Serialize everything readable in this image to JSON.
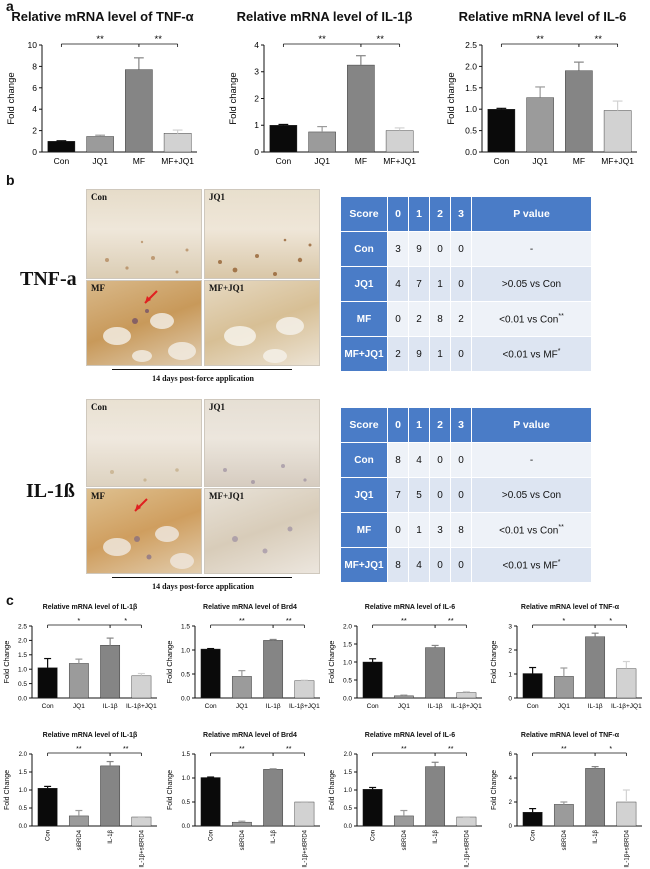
{
  "panel_letters": {
    "a": "a",
    "b": "b",
    "c": "c"
  },
  "colors": {
    "black": "#0a0a0a",
    "dark_gray": "#858585",
    "gray": "#9b9b9b",
    "light_gray": "#d2d2d2",
    "table_header": "#4a7cc7"
  },
  "chart_data": [
    {
      "type": "bar",
      "title": "Relative mRNA level of TNF-α",
      "ylabel": "Fold change",
      "categories": [
        "Con",
        "JQ1",
        "MF",
        "MF+JQ1"
      ],
      "values": [
        1.0,
        1.45,
        7.7,
        1.75
      ],
      "errors": [
        0.05,
        0.12,
        1.1,
        0.3
      ],
      "ylim": [
        0,
        10
      ],
      "yticks": [
        "0",
        "2",
        "4",
        "6",
        "8",
        "10"
      ],
      "significance": [
        {
          "from": 0,
          "to": 2,
          "label": "**"
        },
        {
          "from": 2,
          "to": 3,
          "label": "**"
        }
      ]
    },
    {
      "type": "bar",
      "title": "Relative mRNA level of IL-1β",
      "ylabel": "Fold change",
      "categories": [
        "Con",
        "JQ1",
        "MF",
        "MF+JQ1"
      ],
      "values": [
        1.0,
        0.75,
        3.25,
        0.8
      ],
      "errors": [
        0.03,
        0.2,
        0.35,
        0.1
      ],
      "ylim": [
        0,
        4
      ],
      "yticks": [
        "0",
        "1",
        "2",
        "3",
        "4"
      ],
      "significance": [
        {
          "from": 0,
          "to": 2,
          "label": "**"
        },
        {
          "from": 2,
          "to": 3,
          "label": "**"
        }
      ]
    },
    {
      "type": "bar",
      "title": "Relative mRNA level of IL-6",
      "ylabel": "Fold change",
      "categories": [
        "Con",
        "JQ1",
        "MF",
        "MF+JQ1"
      ],
      "values": [
        1.0,
        1.27,
        1.9,
        0.97
      ],
      "errors": [
        0.02,
        0.25,
        0.2,
        0.22
      ],
      "ylim": [
        0,
        2.5
      ],
      "yticks": [
        "0.0",
        "0.5",
        "1.0",
        "1.5",
        "2.0",
        "2.5"
      ],
      "significance": [
        {
          "from": 0,
          "to": 2,
          "label": "**"
        },
        {
          "from": 2,
          "to": 3,
          "label": "**"
        }
      ]
    },
    {
      "type": "bar",
      "title": "Relative mRNA level of IL-1β",
      "ylabel": "Fold Change",
      "categories": [
        "Con",
        "JQ1",
        "IL-1β",
        "IL-1β+JQ1"
      ],
      "values": [
        1.05,
        1.2,
        1.83,
        0.77
      ],
      "errors": [
        0.32,
        0.15,
        0.25,
        0.08
      ],
      "ylim": [
        0,
        2.5
      ],
      "yticks": [
        "0.0",
        "0.5",
        "1.0",
        "1.5",
        "2.0",
        "2.5"
      ],
      "significance": [
        {
          "from": 0,
          "to": 2,
          "label": "*"
        },
        {
          "from": 2,
          "to": 3,
          "label": "*"
        }
      ]
    },
    {
      "type": "bar",
      "title": "Relative mRNA level of Brd4",
      "ylabel": "Fold Change",
      "categories": [
        "Con",
        "JQ1",
        "IL-1β",
        "IL-1β+JQ1"
      ],
      "values": [
        1.02,
        0.45,
        1.2,
        0.36
      ],
      "errors": [
        0.01,
        0.12,
        0.02,
        0.01
      ],
      "ylim": [
        0,
        1.5
      ],
      "yticks": [
        "0.0",
        "0.5",
        "1.0",
        "1.5"
      ],
      "significance": [
        {
          "from": 0,
          "to": 2,
          "label": "**"
        },
        {
          "from": 2,
          "to": 3,
          "label": "**"
        }
      ]
    },
    {
      "type": "bar",
      "title": "Relative mRNA level of IL-6",
      "ylabel": "Fold Change",
      "categories": [
        "Con",
        "JQ1",
        "IL-1β",
        "IL-1β+JQ1"
      ],
      "values": [
        1.0,
        0.06,
        1.4,
        0.15
      ],
      "errors": [
        0.09,
        0.02,
        0.06,
        0.03
      ],
      "ylim": [
        0,
        2.0
      ],
      "yticks": [
        "0.0",
        "0.5",
        "1.0",
        "1.5",
        "2.0"
      ],
      "significance": [
        {
          "from": 0,
          "to": 2,
          "label": "**"
        },
        {
          "from": 2,
          "to": 3,
          "label": "**"
        }
      ]
    },
    {
      "type": "bar",
      "title": "Relative mRNA level of TNF-α",
      "ylabel": "Fold Change",
      "categories": [
        "Con",
        "JQ1",
        "IL-1β",
        "IL-1β+JQ1"
      ],
      "values": [
        1.02,
        0.9,
        2.55,
        1.22
      ],
      "errors": [
        0.25,
        0.35,
        0.15,
        0.3
      ],
      "ylim": [
        0,
        3
      ],
      "yticks": [
        "0",
        "1",
        "2",
        "3"
      ],
      "significance": [
        {
          "from": 0,
          "to": 2,
          "label": "*"
        },
        {
          "from": 2,
          "to": 3,
          "label": "*"
        }
      ]
    },
    {
      "type": "bar",
      "title": "Relative mRNA level of IL-1β",
      "ylabel": "Fold Change",
      "categories": [
        "Con",
        "siBRD4",
        "IL-1β",
        "IL-1β+siBRD4"
      ],
      "values": [
        1.05,
        0.28,
        1.67,
        0.25
      ],
      "errors": [
        0.05,
        0.15,
        0.12,
        0.01
      ],
      "ylim": [
        0,
        2.0
      ],
      "yticks": [
        "0.0",
        "0.5",
        "1.0",
        "1.5",
        "2.0"
      ],
      "significance": [
        {
          "from": 0,
          "to": 2,
          "label": "**"
        },
        {
          "from": 2,
          "to": 3,
          "label": "**"
        }
      ]
    },
    {
      "type": "bar",
      "title": "Relative mRNA level of Brd4",
      "ylabel": "Fold Change",
      "categories": [
        "Con",
        "siBRD4",
        "IL-1β",
        "IL-1β+siBRD4"
      ],
      "values": [
        1.01,
        0.08,
        1.18,
        0.5
      ],
      "errors": [
        0.01,
        0.02,
        0.01,
        0.01
      ],
      "ylim": [
        0,
        1.5
      ],
      "yticks": [
        "0.0",
        "0.5",
        "1.0",
        "1.5"
      ],
      "significance": [
        {
          "from": 0,
          "to": 2,
          "label": "**"
        },
        {
          "from": 2,
          "to": 3,
          "label": "**"
        }
      ]
    },
    {
      "type": "bar",
      "title": "Relative mRNA level of IL-6",
      "ylabel": "Fold Change",
      "categories": [
        "Con",
        "siBRD4",
        "IL-1β",
        "IL-1β+siBRD4"
      ],
      "values": [
        1.02,
        0.28,
        1.65,
        0.25
      ],
      "errors": [
        0.05,
        0.15,
        0.12,
        0.01
      ],
      "ylim": [
        0,
        2.0
      ],
      "yticks": [
        "0.0",
        "0.5",
        "1.0",
        "1.5",
        "2.0"
      ],
      "significance": [
        {
          "from": 0,
          "to": 2,
          "label": "**"
        },
        {
          "from": 2,
          "to": 3,
          "label": "**"
        }
      ]
    },
    {
      "type": "bar",
      "title": "Relative mRNA level of TNF-α",
      "ylabel": "Fold Change",
      "categories": [
        "Con",
        "siBRD4",
        "IL-1β",
        "IL-1β+siBRD4"
      ],
      "values": [
        1.15,
        1.8,
        4.8,
        2.0
      ],
      "errors": [
        0.3,
        0.2,
        0.15,
        1.0
      ],
      "ylim": [
        0,
        6
      ],
      "yticks": [
        "0",
        "2",
        "4",
        "6"
      ],
      "significance": [
        {
          "from": 0,
          "to": 2,
          "label": "**"
        },
        {
          "from": 2,
          "to": 3,
          "label": "*"
        }
      ]
    }
  ],
  "histology": {
    "tnf": {
      "stain_label": "TNF-a",
      "panels": [
        "Con",
        "JQ1",
        "MF",
        "MF+JQ1"
      ],
      "caption": "14 days post-force application",
      "table": {
        "header": [
          "Score",
          "0",
          "1",
          "2",
          "3",
          "P value"
        ],
        "rows": [
          {
            "group": "Con",
            "c0": "3",
            "c1": "9",
            "c2": "0",
            "c3": "0",
            "p": "-",
            "sup": ""
          },
          {
            "group": "JQ1",
            "c0": "4",
            "c1": "7",
            "c2": "1",
            "c3": "0",
            "p": ">0.05 vs Con",
            "sup": ""
          },
          {
            "group": "MF",
            "c0": "0",
            "c1": "2",
            "c2": "8",
            "c3": "2",
            "p": "<0.01 vs Con",
            "sup": "**"
          },
          {
            "group": "MF+JQ1",
            "c0": "2",
            "c1": "9",
            "c2": "1",
            "c3": "0",
            "p": "<0.01 vs MF",
            "sup": "*"
          }
        ]
      }
    },
    "il1b": {
      "stain_label": "IL-1ß",
      "panels": [
        "Con",
        "JQ1",
        "MF",
        "MF+JQ1"
      ],
      "caption": "14 days post-force application",
      "table": {
        "header": [
          "Score",
          "0",
          "1",
          "2",
          "3",
          "P value"
        ],
        "rows": [
          {
            "group": "Con",
            "c0": "8",
            "c1": "4",
            "c2": "0",
            "c3": "0",
            "p": "-",
            "sup": ""
          },
          {
            "group": "JQ1",
            "c0": "7",
            "c1": "5",
            "c2": "0",
            "c3": "0",
            "p": ">0.05 vs Con",
            "sup": ""
          },
          {
            "group": "MF",
            "c0": "0",
            "c1": "1",
            "c2": "3",
            "c3": "8",
            "p": "<0.01 vs Con",
            "sup": "**"
          },
          {
            "group": "MF+JQ1",
            "c0": "8",
            "c1": "4",
            "c2": "0",
            "c3": "0",
            "p": "<0.01 vs MF",
            "sup": "*"
          }
        ]
      }
    }
  }
}
